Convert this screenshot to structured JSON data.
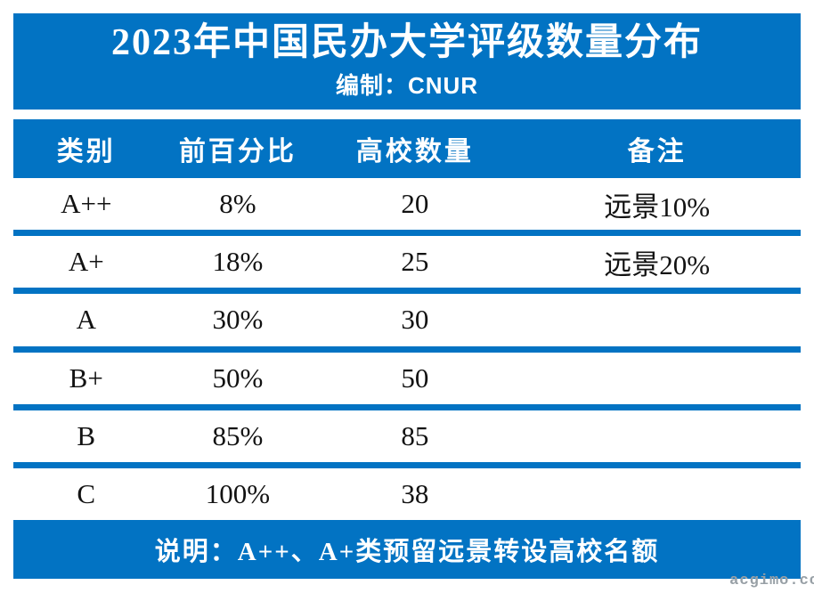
{
  "title": "2023年中国民办大学评级数量分布",
  "subtitle": "编制：CNUR",
  "table": {
    "headers": [
      "类别",
      "前百分比",
      "高校数量",
      "备注"
    ],
    "rows": [
      {
        "category": "A++",
        "percent": "8%",
        "count": "20",
        "note": "远景10%"
      },
      {
        "category": "A+",
        "percent": "18%",
        "count": "25",
        "note": "远景20%"
      },
      {
        "category": "A",
        "percent": "30%",
        "count": "30",
        "note": ""
      },
      {
        "category": "B+",
        "percent": "50%",
        "count": "50",
        "note": ""
      },
      {
        "category": "B",
        "percent": "85%",
        "count": "85",
        "note": ""
      },
      {
        "category": "C",
        "percent": "100%",
        "count": "38",
        "note": ""
      }
    ]
  },
  "footer": {
    "note": "说明：A++、A+类预留远景转设高校名额"
  },
  "watermark": {
    "text": "acgimo.co"
  },
  "colors": {
    "accent_blue": "#0273C3",
    "text_on_blue": "#ffffff",
    "text_dark": "#121212",
    "watermark_gray": "#98A0A6"
  },
  "chart_data": {
    "type": "table",
    "title": "2023年中国民办大学评级数量分布",
    "subtitle": "编制：CNUR",
    "columns": [
      "类别",
      "前百分比",
      "高校数量",
      "备注"
    ],
    "rows": [
      [
        "A++",
        "8%",
        20,
        "远景10%"
      ],
      [
        "A+",
        "18%",
        25,
        "远景20%"
      ],
      [
        "A",
        "30%",
        30,
        ""
      ],
      [
        "B+",
        "50%",
        50,
        ""
      ],
      [
        "B",
        "85%",
        85,
        ""
      ],
      [
        "C",
        "100%",
        38,
        ""
      ]
    ],
    "footnote": "说明：A++、A+类预留远景转设高校名额"
  }
}
